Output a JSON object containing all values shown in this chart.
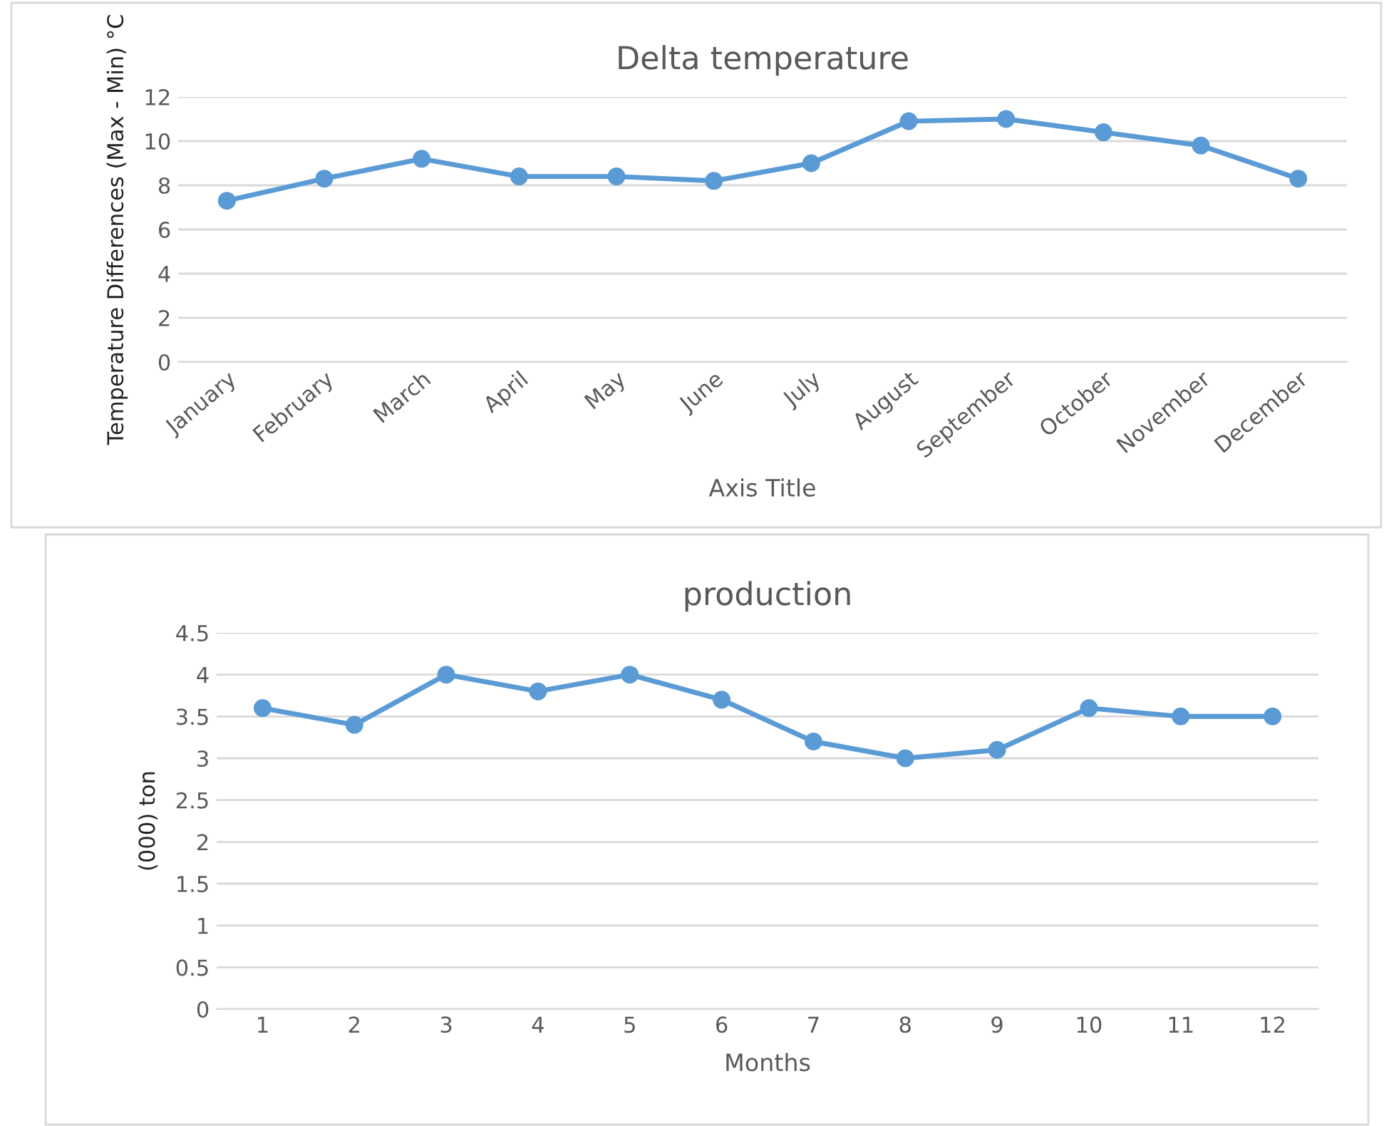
{
  "chart_data": [
    {
      "type": "line",
      "title": "Delta temperature",
      "xlabel": "Axis Title",
      "ylabel": "Temperature Differences (Max - Min) °C",
      "categories": [
        "January",
        "February",
        "March",
        "April",
        "May",
        "June",
        "July",
        "August",
        "September",
        "October",
        "November",
        "December"
      ],
      "series": [
        {
          "color": "#5b9bd5",
          "values": [
            7.3,
            8.3,
            9.2,
            8.4,
            8.4,
            8.2,
            9.0,
            10.9,
            11.0,
            10.4,
            9.8,
            8.3
          ]
        }
      ],
      "ylim": [
        0,
        12
      ],
      "yticks": [
        0,
        2,
        4,
        6,
        8,
        10,
        12
      ],
      "grid": "y",
      "marker": "circle",
      "line_style": "solid"
    },
    {
      "type": "line",
      "title": "production",
      "xlabel": "Months",
      "ylabel": "(000) ton",
      "categories": [
        "1",
        "2",
        "3",
        "4",
        "5",
        "6",
        "7",
        "8",
        "9",
        "10",
        "11",
        "12"
      ],
      "series": [
        {
          "color": "#5b9bd5",
          "values": [
            3.6,
            3.4,
            4.0,
            3.8,
            4.0,
            3.7,
            3.2,
            3.0,
            3.1,
            3.6,
            3.5,
            3.5
          ]
        }
      ],
      "ylim": [
        0,
        4.5
      ],
      "yticks": [
        0,
        0.5,
        1,
        1.5,
        2,
        2.5,
        3,
        3.5,
        4,
        4.5
      ],
      "grid": "y",
      "marker": "circle",
      "line_style": "solid"
    }
  ]
}
